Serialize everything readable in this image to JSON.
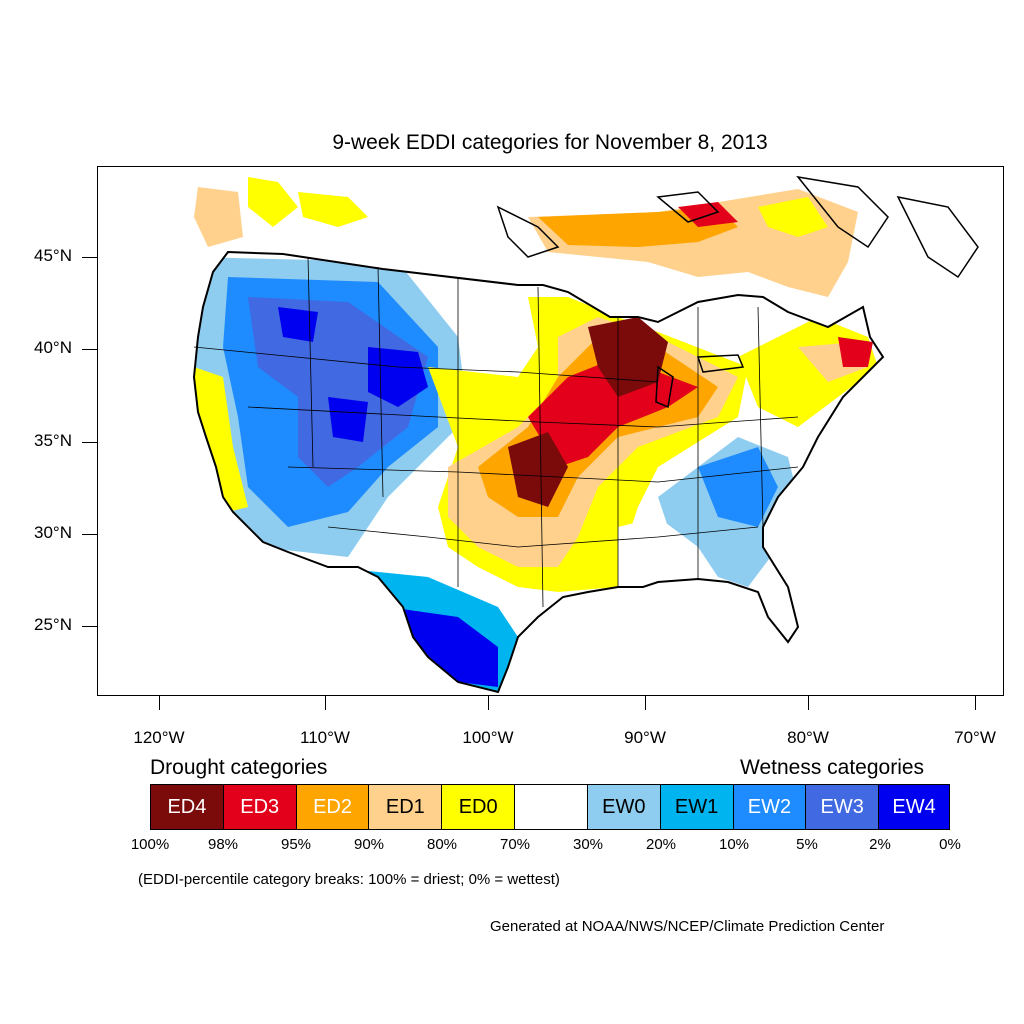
{
  "title": "9-week EDDI categories for November 8, 2013",
  "lat_labels": [
    "45°N",
    "40°N",
    "35°N",
    "30°N",
    "25°N"
  ],
  "lon_labels": [
    "120°W",
    "110°W",
    "100°W",
    "90°W",
    "80°W",
    "70°W"
  ],
  "legend": {
    "drought_heading": "Drought categories",
    "wetness_heading": "Wetness categories",
    "categories": [
      {
        "label": "ED4",
        "color": "#7b0a0a",
        "text_color": "#ffffff"
      },
      {
        "label": "ED3",
        "color": "#e3001b",
        "text_color": "#ffffff"
      },
      {
        "label": "ED2",
        "color": "#ffa500",
        "text_color": "#ffffff"
      },
      {
        "label": "ED1",
        "color": "#ffd18c",
        "text_color": "#000000"
      },
      {
        "label": "ED0",
        "color": "#ffff00",
        "text_color": "#000000"
      },
      {
        "label": "",
        "color": "#ffffff",
        "text_color": "#000000"
      },
      {
        "label": "EW0",
        "color": "#8fcdf0",
        "text_color": "#000000"
      },
      {
        "label": "EW1",
        "color": "#00b4f0",
        "text_color": "#000000"
      },
      {
        "label": "EW2",
        "color": "#1e8cff",
        "text_color": "#ffffff"
      },
      {
        "label": "EW3",
        "color": "#4169e1",
        "text_color": "#ffffff"
      },
      {
        "label": "EW4",
        "color": "#0000f0",
        "text_color": "#ffffff"
      }
    ],
    "percentiles": [
      "100%",
      "98%",
      "95%",
      "90%",
      "80%",
      "70%",
      "30%",
      "20%",
      "10%",
      "5%",
      "2%",
      "0%"
    ]
  },
  "note": "(EDDI-percentile category breaks: 100% = driest; 0% = wettest)",
  "credit": "Generated at NOAA/NWS/NCEP/Climate Prediction Center"
}
